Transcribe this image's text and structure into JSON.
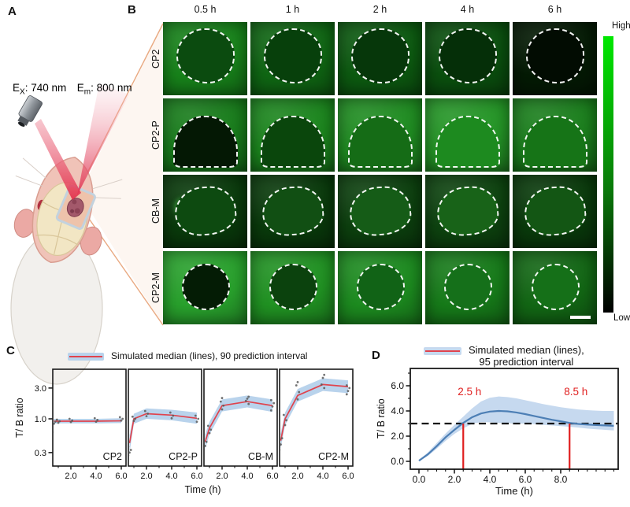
{
  "panel_labels": {
    "a": "A",
    "b": "B",
    "c": "C",
    "d": "D"
  },
  "panel_a": {
    "ex_base": "E",
    "ex_sub": "X",
    "ex_rest": ": 740 nm",
    "em_base": "E",
    "em_sub": "m",
    "em_rest": ": 800 nm"
  },
  "panel_b": {
    "column_labels": [
      "0.5 h",
      "1 h",
      "2 h",
      "4 h",
      "6 h"
    ],
    "colorbar": {
      "high": "High",
      "low": "Low",
      "stops": [
        "#00e800",
        "#0a7a0a",
        "#000000"
      ]
    },
    "rows": [
      {
        "label": "CP2",
        "shape": "oval",
        "cells": [
          {
            "bg": "#17821a",
            "region": "#0b4b0f"
          },
          {
            "bg": "#0f6613",
            "region": "#07400b"
          },
          {
            "bg": "#0c5a10",
            "region": "#06370a"
          },
          {
            "bg": "#0a4f0e",
            "region": "#052f08"
          },
          {
            "bg": "#041a04",
            "region": "#020c02"
          }
        ]
      },
      {
        "label": "CP2-P",
        "shape": "dome",
        "cells": [
          {
            "bg": "#187c1b",
            "region": "#041804"
          },
          {
            "bg": "#1b851d",
            "region": "#0a460c"
          },
          {
            "bg": "#1f8c21",
            "region": "#156c16"
          },
          {
            "bg": "#249526",
            "region": "#1d8a1f"
          },
          {
            "bg": "#1a7e1c",
            "region": "#167417"
          }
        ]
      },
      {
        "label": "CB-M",
        "shape": "poly",
        "cells": [
          {
            "bg": "#093a0b",
            "region": "#0d4a10",
            "spot": {
              "x": 24,
              "y": 44,
              "r": 15,
              "c": "#49d04d"
            }
          },
          {
            "bg": "#093a0b",
            "region": "#114f13",
            "spot": {
              "x": 42,
              "y": 48,
              "r": 13,
              "c": "#2da331"
            }
          },
          {
            "bg": "#0c400e",
            "region": "#155c17",
            "spot": {
              "x": 40,
              "y": 50,
              "r": 14,
              "c": "#2fae33"
            }
          },
          {
            "bg": "#0d430f",
            "region": "#186318",
            "spot": {
              "x": 50,
              "y": 48,
              "r": 15,
              "c": "#2fae33"
            }
          },
          {
            "bg": "#093a0b",
            "region": "#135614",
            "spot": {
              "x": 55,
              "y": 50,
              "r": 13,
              "c": "#27962b"
            }
          }
        ]
      },
      {
        "label": "CP2-M",
        "shape": "circle",
        "cells": [
          {
            "bg": "#28a02c",
            "region": "#041c05"
          },
          {
            "bg": "#209122",
            "region": "#0b420d"
          },
          {
            "bg": "#1c8a1f",
            "region": "#116316"
          },
          {
            "bg": "#167a19",
            "region": "#15701a",
            "spot": {
              "x": 50,
              "y": 52,
              "r": 20,
              "c": "#43c747"
            }
          },
          {
            "bg": "#126614",
            "region": "#157018",
            "spot": {
              "x": 52,
              "y": 52,
              "r": 16,
              "c": "#2a9a2e"
            },
            "scalebar": true
          }
        ]
      }
    ]
  },
  "chart_data": [
    {
      "panel": "C",
      "type": "line",
      "legend": "Simulated median (lines), 90 prediction interval",
      "xlabel": "Time (h)",
      "ylabel": "T/ B ratio",
      "yscale": "log",
      "yticks": [
        3.0,
        1.0,
        0.3
      ],
      "ytick_labels": [
        "3.0",
        "1.0",
        "0.3"
      ],
      "xticks": [
        2.0,
        4.0,
        6.0
      ],
      "xtick_labels": [
        "2.0",
        "4.0",
        "6.0"
      ],
      "x": [
        0.5,
        1,
        2,
        4,
        6
      ],
      "colors": {
        "median": "#e0434d",
        "band": "#b9d3ec",
        "points": "#5a5a5a"
      },
      "subplots": [
        {
          "name": "CP2",
          "median": [
            0.92,
            0.92,
            0.92,
            0.92,
            0.93
          ],
          "lower": [
            0.84,
            0.85,
            0.85,
            0.85,
            0.86
          ],
          "upper": [
            1.0,
            1.0,
            1.0,
            1.0,
            1.02
          ],
          "points": [
            [
              0.5,
              0.62
            ],
            [
              0.5,
              0.84
            ],
            [
              0.5,
              0.9
            ],
            [
              0.5,
              0.96
            ],
            [
              1,
              0.87
            ],
            [
              1,
              0.92
            ],
            [
              1,
              0.97
            ],
            [
              2,
              0.89
            ],
            [
              2,
              0.94
            ],
            [
              2,
              1.0
            ],
            [
              4,
              0.9
            ],
            [
              4,
              0.96
            ],
            [
              4,
              1.02
            ],
            [
              6,
              0.94
            ],
            [
              6,
              1.0
            ],
            [
              6,
              1.06
            ]
          ]
        },
        {
          "name": "CP2-P",
          "median": [
            0.42,
            1.0,
            1.2,
            1.14,
            1.02
          ],
          "lower": [
            0.3,
            0.84,
            1.0,
            0.95,
            0.84
          ],
          "upper": [
            0.56,
            1.2,
            1.45,
            1.38,
            1.25
          ],
          "points": [
            [
              0.5,
              0.27
            ],
            [
              0.5,
              0.3
            ],
            [
              0.5,
              0.33
            ],
            [
              0.5,
              0.37
            ],
            [
              1,
              0.93
            ],
            [
              1,
              1.0
            ],
            [
              1,
              1.08
            ],
            [
              2,
              1.1
            ],
            [
              2,
              1.2
            ],
            [
              2,
              1.32
            ],
            [
              4,
              1.02
            ],
            [
              4,
              1.12
            ],
            [
              4,
              1.25
            ],
            [
              6,
              0.9
            ],
            [
              6,
              1.0
            ],
            [
              6,
              1.12
            ]
          ]
        },
        {
          "name": "CB-M",
          "median": [
            0.44,
            0.72,
            1.6,
            1.85,
            1.6
          ],
          "lower": [
            0.34,
            0.57,
            1.3,
            1.5,
            1.28
          ],
          "upper": [
            0.57,
            0.9,
            2.0,
            2.3,
            2.0
          ],
          "points": [
            [
              0.5,
              0.33
            ],
            [
              0.5,
              0.38
            ],
            [
              0.5,
              0.44
            ],
            [
              0.5,
              0.5
            ],
            [
              1,
              0.6
            ],
            [
              1,
              0.68
            ],
            [
              1,
              0.78
            ],
            [
              2,
              1.4
            ],
            [
              2,
              1.6
            ],
            [
              2,
              1.85
            ],
            [
              2,
              2.1
            ],
            [
              4,
              1.7
            ],
            [
              4,
              1.9
            ],
            [
              4,
              2.05
            ],
            [
              4,
              2.2
            ],
            [
              6,
              1.35
            ],
            [
              6,
              1.55
            ],
            [
              6,
              1.75
            ],
            [
              6,
              1.95
            ]
          ]
        },
        {
          "name": "CP2-M",
          "median": [
            0.46,
            1.0,
            2.3,
            3.4,
            3.15
          ],
          "lower": [
            0.35,
            0.8,
            1.85,
            2.7,
            2.5
          ],
          "upper": [
            0.6,
            1.25,
            2.9,
            4.25,
            3.95
          ],
          "points": [
            [
              0.5,
              0.33
            ],
            [
              0.5,
              0.4
            ],
            [
              0.5,
              0.5
            ],
            [
              0.5,
              0.58
            ],
            [
              1,
              0.8
            ],
            [
              1,
              0.95
            ],
            [
              1,
              1.15
            ],
            [
              2,
              2.0
            ],
            [
              2,
              2.6
            ],
            [
              2,
              3.3
            ],
            [
              2,
              3.7
            ],
            [
              4,
              3.0
            ],
            [
              4,
              3.4
            ],
            [
              4,
              4.3
            ],
            [
              4,
              4.8
            ],
            [
              6,
              2.4
            ],
            [
              6,
              2.7
            ],
            [
              6,
              3.0
            ],
            [
              6,
              3.3
            ]
          ]
        }
      ]
    },
    {
      "panel": "D",
      "type": "line",
      "legend_line1": "Simulated median (lines),",
      "legend_line2": "95 prediction interval",
      "xlabel": "Time (h)",
      "ylabel": "T/ B ratio",
      "xlim": [
        0,
        11.2
      ],
      "ylim": [
        0,
        7.4
      ],
      "xticks": [
        0,
        2,
        4,
        6,
        8
      ],
      "xtick_labels": [
        "0.0",
        "2.0",
        "4.0",
        "6.0",
        "8.0"
      ],
      "yticks": [
        0,
        2,
        4,
        6
      ],
      "ytick_labels": [
        "0.0",
        "2.0",
        "4.0",
        "6.0"
      ],
      "threshold": 3.0,
      "annotations": [
        {
          "text": "2.5 h",
          "x": 2.5
        },
        {
          "text": "8.5 h",
          "x": 8.5
        }
      ],
      "colors": {
        "line": "#4d7fb5",
        "band": "#c6d9ef",
        "dash": "#141414",
        "vline": "#e01f1f",
        "annotation": "#e02020"
      },
      "x": [
        0,
        0.5,
        1,
        1.5,
        2,
        2.5,
        3,
        3.5,
        4,
        4.5,
        5,
        5.5,
        6,
        6.5,
        7,
        7.5,
        8,
        8.5,
        9,
        9.5,
        10,
        10.5,
        11
      ],
      "median": [
        0.05,
        0.55,
        1.2,
        1.9,
        2.5,
        3.05,
        3.5,
        3.8,
        3.95,
        4.0,
        3.97,
        3.88,
        3.75,
        3.6,
        3.45,
        3.3,
        3.18,
        3.05,
        2.97,
        2.92,
        2.88,
        2.85,
        2.82
      ],
      "lower": [
        0.02,
        0.42,
        1.0,
        1.62,
        2.18,
        2.62,
        2.98,
        3.12,
        3.1,
        3.05,
        3.02,
        3.0,
        3.0,
        2.95,
        2.9,
        2.85,
        2.8,
        2.74,
        2.68,
        2.6,
        2.55,
        2.5,
        2.45
      ],
      "upper": [
        0.1,
        0.7,
        1.45,
        2.2,
        2.9,
        3.55,
        4.2,
        4.75,
        5.05,
        5.15,
        5.1,
        5.0,
        4.85,
        4.7,
        4.55,
        4.42,
        4.3,
        4.2,
        4.12,
        4.06,
        4.02,
        4.0,
        4.0
      ]
    }
  ]
}
